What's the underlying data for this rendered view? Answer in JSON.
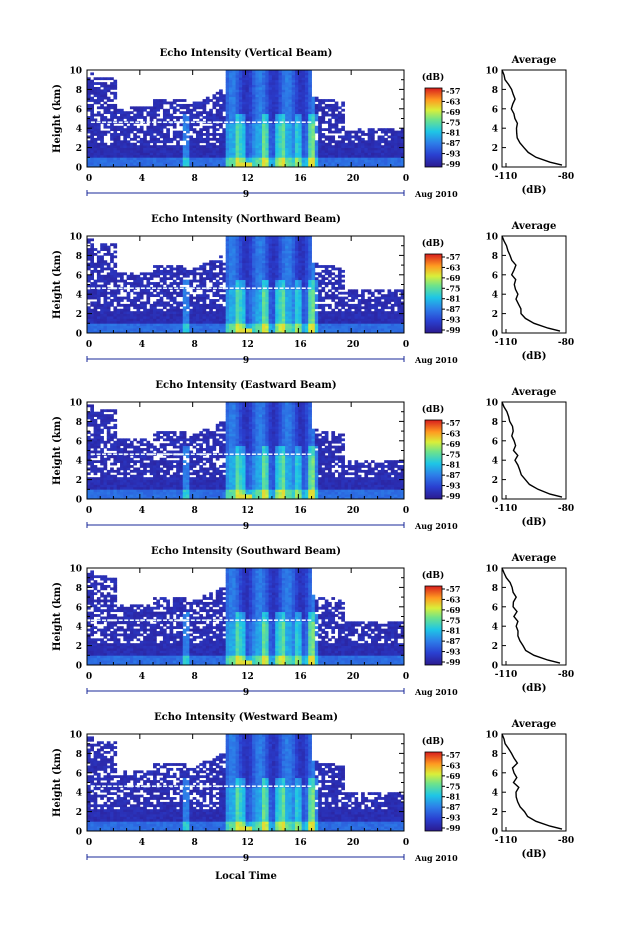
{
  "chart_data": [
    {
      "type": "heatmap",
      "title": "Echo Intensity (Vertical Beam)",
      "ylabel": "Height (km)",
      "xlabel": "",
      "x_ticks": [
        "0",
        "4",
        "8",
        "12",
        "16",
        "20",
        "0"
      ],
      "y_ticks": [
        "0",
        "2",
        "4",
        "6",
        "8",
        "10"
      ],
      "xlim": [
        0,
        24
      ],
      "ylim": [
        0,
        10
      ],
      "day_label": "9",
      "date_label": "Aug 2010",
      "colorbar": {
        "unit": "(dB)",
        "ticks": [
          "-57",
          "-63",
          "-69",
          "-75",
          "-81",
          "-87",
          "-93",
          "-99"
        ],
        "range": [
          -99,
          -55
        ]
      },
      "profile": {
        "title": "Average",
        "xlabel": "(dB)",
        "x_ticks": [
          "-110",
          "-80"
        ],
        "y_ticks": [
          "0",
          "2",
          "4",
          "6",
          "8",
          "10"
        ],
        "height_km": [
          0.2,
          0.5,
          1,
          1.5,
          2,
          2.5,
          3,
          3.5,
          4,
          4.5,
          5,
          5.5,
          6,
          6.5,
          7,
          7.5,
          8,
          8.5,
          9,
          9.5,
          10
        ],
        "db": [
          -82,
          -88,
          -95,
          -99,
          -101,
          -103,
          -104,
          -105,
          -105,
          -104,
          -106,
          -106,
          -107,
          -107,
          -105,
          -106,
          -107,
          -109,
          -110,
          -111,
          -112
        ]
      }
    },
    {
      "type": "heatmap",
      "title": "Echo Intensity (Northward Beam)",
      "ylabel": "Height (km)",
      "xlabel": "",
      "x_ticks": [
        "0",
        "4",
        "8",
        "12",
        "16",
        "20",
        "0"
      ],
      "y_ticks": [
        "0",
        "2",
        "4",
        "6",
        "8",
        "10"
      ],
      "xlim": [
        0,
        24
      ],
      "ylim": [
        0,
        10
      ],
      "day_label": "9",
      "date_label": "Aug 2010",
      "colorbar": {
        "unit": "(dB)",
        "ticks": [
          "-57",
          "-63",
          "-69",
          "-75",
          "-81",
          "-87",
          "-93",
          "-99"
        ],
        "range": [
          -99,
          -55
        ]
      },
      "profile": {
        "title": "Average",
        "xlabel": "(dB)",
        "x_ticks": [
          "-110",
          "-80"
        ],
        "y_ticks": [
          "0",
          "2",
          "4",
          "6",
          "8",
          "10"
        ],
        "height_km": [
          0.2,
          0.5,
          1,
          1.5,
          2,
          2.5,
          3,
          3.5,
          4,
          4.5,
          5,
          5.5,
          6,
          6.5,
          7,
          7.5,
          8,
          8.5,
          9,
          9.5,
          10
        ],
        "db": [
          -83,
          -89,
          -96,
          -100,
          -102,
          -103,
          -104,
          -105,
          -104,
          -105,
          -106,
          -105,
          -107,
          -106,
          -105,
          -107,
          -108,
          -109,
          -110,
          -111,
          -112
        ]
      }
    },
    {
      "type": "heatmap",
      "title": "Echo Intensity (Eastward Beam)",
      "ylabel": "Height (km)",
      "xlabel": "",
      "x_ticks": [
        "0",
        "4",
        "8",
        "12",
        "16",
        "20",
        "0"
      ],
      "y_ticks": [
        "0",
        "2",
        "4",
        "6",
        "8",
        "10"
      ],
      "xlim": [
        0,
        24
      ],
      "ylim": [
        0,
        10
      ],
      "day_label": "9",
      "date_label": "Aug 2010",
      "colorbar": {
        "unit": "(dB)",
        "ticks": [
          "-57",
          "-63",
          "-69",
          "-75",
          "-81",
          "-87",
          "-93",
          "-99"
        ],
        "range": [
          -99,
          -55
        ]
      },
      "profile": {
        "title": "Average",
        "xlabel": "(dB)",
        "x_ticks": [
          "-110",
          "-80"
        ],
        "y_ticks": [
          "0",
          "2",
          "4",
          "6",
          "8",
          "10"
        ],
        "height_km": [
          0.2,
          0.5,
          1,
          1.5,
          2,
          2.5,
          3,
          3.5,
          4,
          4.5,
          5,
          5.5,
          6,
          6.5,
          7,
          7.5,
          8,
          8.5,
          9,
          9.5,
          10
        ],
        "db": [
          -82,
          -88,
          -94,
          -98,
          -100,
          -102,
          -103,
          -104,
          -105,
          -104,
          -106,
          -105,
          -106,
          -107,
          -106,
          -107,
          -108,
          -109,
          -110,
          -111,
          -112
        ]
      }
    },
    {
      "type": "heatmap",
      "title": "Echo Intensity (Southward Beam)",
      "ylabel": "Height (km)",
      "xlabel": "",
      "x_ticks": [
        "0",
        "4",
        "8",
        "12",
        "16",
        "20",
        "0"
      ],
      "y_ticks": [
        "0",
        "2",
        "4",
        "6",
        "8",
        "10"
      ],
      "xlim": [
        0,
        24
      ],
      "ylim": [
        0,
        10
      ],
      "day_label": "9",
      "date_label": "Aug 2010",
      "colorbar": {
        "unit": "(dB)",
        "ticks": [
          "-57",
          "-63",
          "-69",
          "-75",
          "-81",
          "-87",
          "-93",
          "-99"
        ],
        "range": [
          -99,
          -55
        ]
      },
      "profile": {
        "title": "Average",
        "xlabel": "(dB)",
        "x_ticks": [
          "-110",
          "-80"
        ],
        "y_ticks": [
          "0",
          "2",
          "4",
          "6",
          "8",
          "10"
        ],
        "height_km": [
          0.2,
          0.5,
          1,
          1.5,
          2,
          2.5,
          3,
          3.5,
          4,
          4.5,
          5,
          5.5,
          6,
          6.5,
          7,
          7.5,
          8,
          8.5,
          9,
          9.5,
          10
        ],
        "db": [
          -83,
          -89,
          -96,
          -100,
          -102,
          -103,
          -104,
          -104,
          -105,
          -104,
          -106,
          -105,
          -106,
          -106,
          -105,
          -106,
          -107,
          -108,
          -110,
          -111,
          -112
        ]
      }
    },
    {
      "type": "heatmap",
      "title": "Echo Intensity (Westward Beam)",
      "ylabel": "Height (km)",
      "xlabel": "Local Time",
      "x_ticks": [
        "0",
        "4",
        "8",
        "12",
        "16",
        "20",
        "0"
      ],
      "y_ticks": [
        "0",
        "2",
        "4",
        "6",
        "8",
        "10"
      ],
      "xlim": [
        0,
        24
      ],
      "ylim": [
        0,
        10
      ],
      "day_label": "9",
      "date_label": "Aug 2010",
      "colorbar": {
        "unit": "(dB)",
        "ticks": [
          "-57",
          "-63",
          "-69",
          "-75",
          "-81",
          "-87",
          "-93",
          "-99"
        ],
        "range": [
          -99,
          -55
        ]
      },
      "profile": {
        "title": "Average",
        "xlabel": "(dB)",
        "x_ticks": [
          "-110",
          "-80"
        ],
        "y_ticks": [
          "0",
          "2",
          "4",
          "6",
          "8",
          "10"
        ],
        "height_km": [
          0.2,
          0.5,
          1,
          1.5,
          2,
          2.5,
          3,
          3.5,
          4,
          4.5,
          5,
          5.5,
          6,
          6.5,
          7,
          7.5,
          8,
          8.5,
          9,
          9.5,
          10
        ],
        "db": [
          -82,
          -88,
          -95,
          -99,
          -101,
          -103,
          -104,
          -105,
          -105,
          -104,
          -106,
          -105,
          -106,
          -107,
          -104,
          -106,
          -107,
          -109,
          -110,
          -111,
          -112
        ]
      }
    }
  ]
}
